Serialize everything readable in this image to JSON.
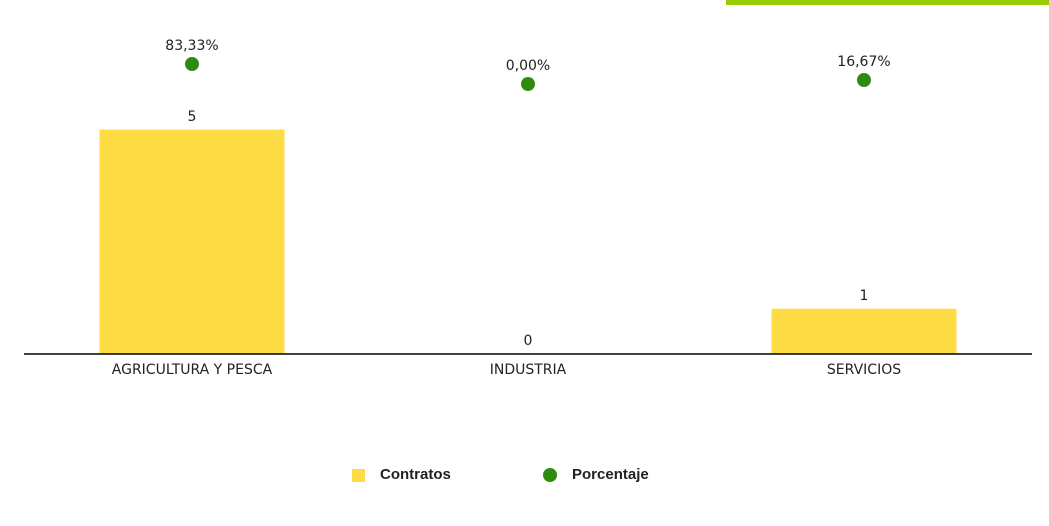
{
  "chart_data": {
    "type": "bar",
    "categories": [
      "AGRICULTURA Y PESCA",
      "INDUSTRIA",
      "SERVICIOS"
    ],
    "ylim": [
      0,
      5
    ],
    "y2lim": [
      0,
      100
    ],
    "series": [
      {
        "name": "Contratos",
        "type": "bar",
        "color": "#fddc44",
        "values": [
          5,
          0,
          1
        ]
      },
      {
        "name": "Porcentaje",
        "type": "scatter",
        "axis": "y2",
        "color": "#2e8b0e",
        "values": [
          83.33,
          0,
          16.67
        ],
        "value_labels": [
          "83,33%",
          "0,00%",
          "16,67%"
        ]
      }
    ],
    "legend": "bottom"
  }
}
